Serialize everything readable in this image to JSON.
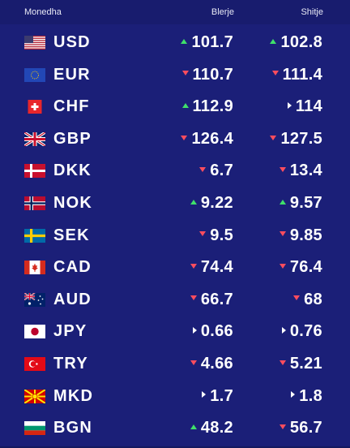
{
  "header": {
    "currency": "Monedha",
    "buy": "Blerje",
    "sell": "Shitje"
  },
  "colors": {
    "background": "#1b1f78",
    "up": "#3fe06a",
    "down": "#ff4d5e",
    "flat": "#ffffff"
  },
  "rows": [
    {
      "code": "USD",
      "flag": "us-flag-icon",
      "buy": "101.7",
      "buy_trend": "up",
      "sell": "102.8",
      "sell_trend": "up"
    },
    {
      "code": "EUR",
      "flag": "eu-flag-icon",
      "buy": "110.7",
      "buy_trend": "down",
      "sell": "111.4",
      "sell_trend": "down"
    },
    {
      "code": "CHF",
      "flag": "ch-flag-icon",
      "buy": "112.9",
      "buy_trend": "up",
      "sell": "114",
      "sell_trend": "flat"
    },
    {
      "code": "GBP",
      "flag": "gb-flag-icon",
      "buy": "126.4",
      "buy_trend": "down",
      "sell": "127.5",
      "sell_trend": "down"
    },
    {
      "code": "DKK",
      "flag": "dk-flag-icon",
      "buy": "6.7",
      "buy_trend": "down",
      "sell": "13.4",
      "sell_trend": "down"
    },
    {
      "code": "NOK",
      "flag": "no-flag-icon",
      "buy": "9.22",
      "buy_trend": "up",
      "sell": "9.57",
      "sell_trend": "up"
    },
    {
      "code": "SEK",
      "flag": "se-flag-icon",
      "buy": "9.5",
      "buy_trend": "down",
      "sell": "9.85",
      "sell_trend": "down"
    },
    {
      "code": "CAD",
      "flag": "ca-flag-icon",
      "buy": "74.4",
      "buy_trend": "down",
      "sell": "76.4",
      "sell_trend": "down"
    },
    {
      "code": "AUD",
      "flag": "au-flag-icon",
      "buy": "66.7",
      "buy_trend": "down",
      "sell": "68",
      "sell_trend": "down"
    },
    {
      "code": "JPY",
      "flag": "jp-flag-icon",
      "buy": "0.66",
      "buy_trend": "flat",
      "sell": "0.76",
      "sell_trend": "flat"
    },
    {
      "code": "TRY",
      "flag": "tr-flag-icon",
      "buy": "4.66",
      "buy_trend": "down",
      "sell": "5.21",
      "sell_trend": "down"
    },
    {
      "code": "MKD",
      "flag": "mk-flag-icon",
      "buy": "1.7",
      "buy_trend": "flat",
      "sell": "1.8",
      "sell_trend": "flat"
    },
    {
      "code": "BGN",
      "flag": "bg-flag-icon",
      "buy": "48.2",
      "buy_trend": "up",
      "sell": "56.7",
      "sell_trend": "down"
    }
  ]
}
